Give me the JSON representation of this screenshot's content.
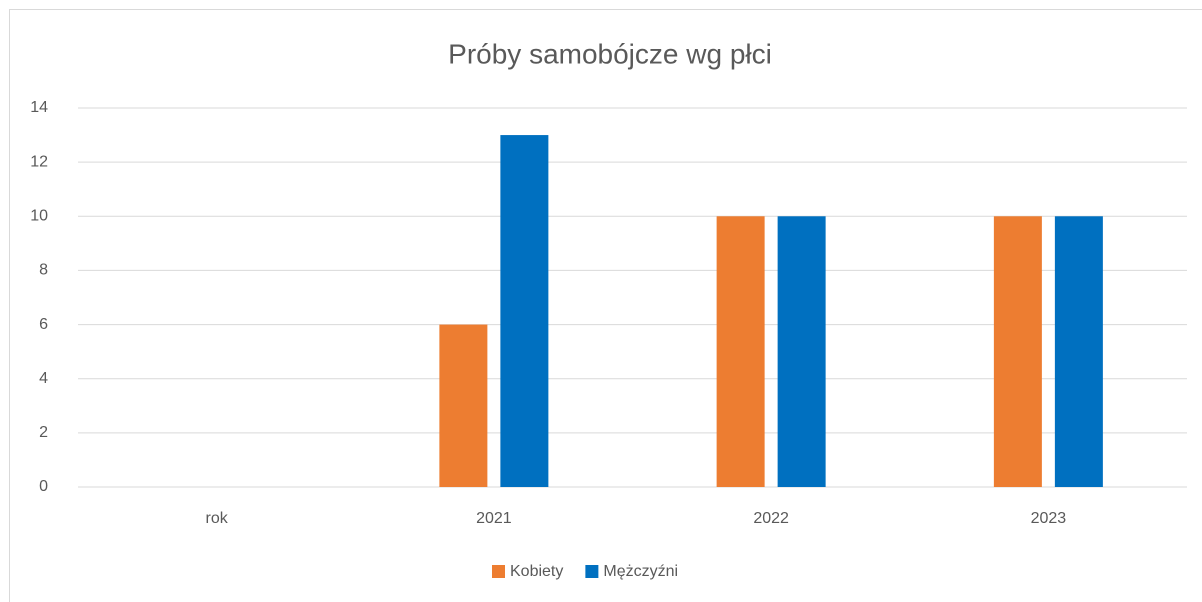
{
  "chart_data": {
    "type": "bar",
    "title": "Próby samobójcze wg płci",
    "categories": [
      "rok",
      "2021",
      "2022",
      "2023"
    ],
    "series": [
      {
        "name": "Kobiety",
        "color": "#ed7d31",
        "values": [
          null,
          6,
          10,
          10
        ]
      },
      {
        "name": "Mężczyźni",
        "color": "#0070c0",
        "values": [
          null,
          13,
          10,
          10
        ]
      }
    ],
    "ylim": [
      0,
      14
    ],
    "yticks": [
      0,
      2,
      4,
      6,
      8,
      10,
      12,
      14
    ],
    "grid": true,
    "legend": "bottom"
  }
}
